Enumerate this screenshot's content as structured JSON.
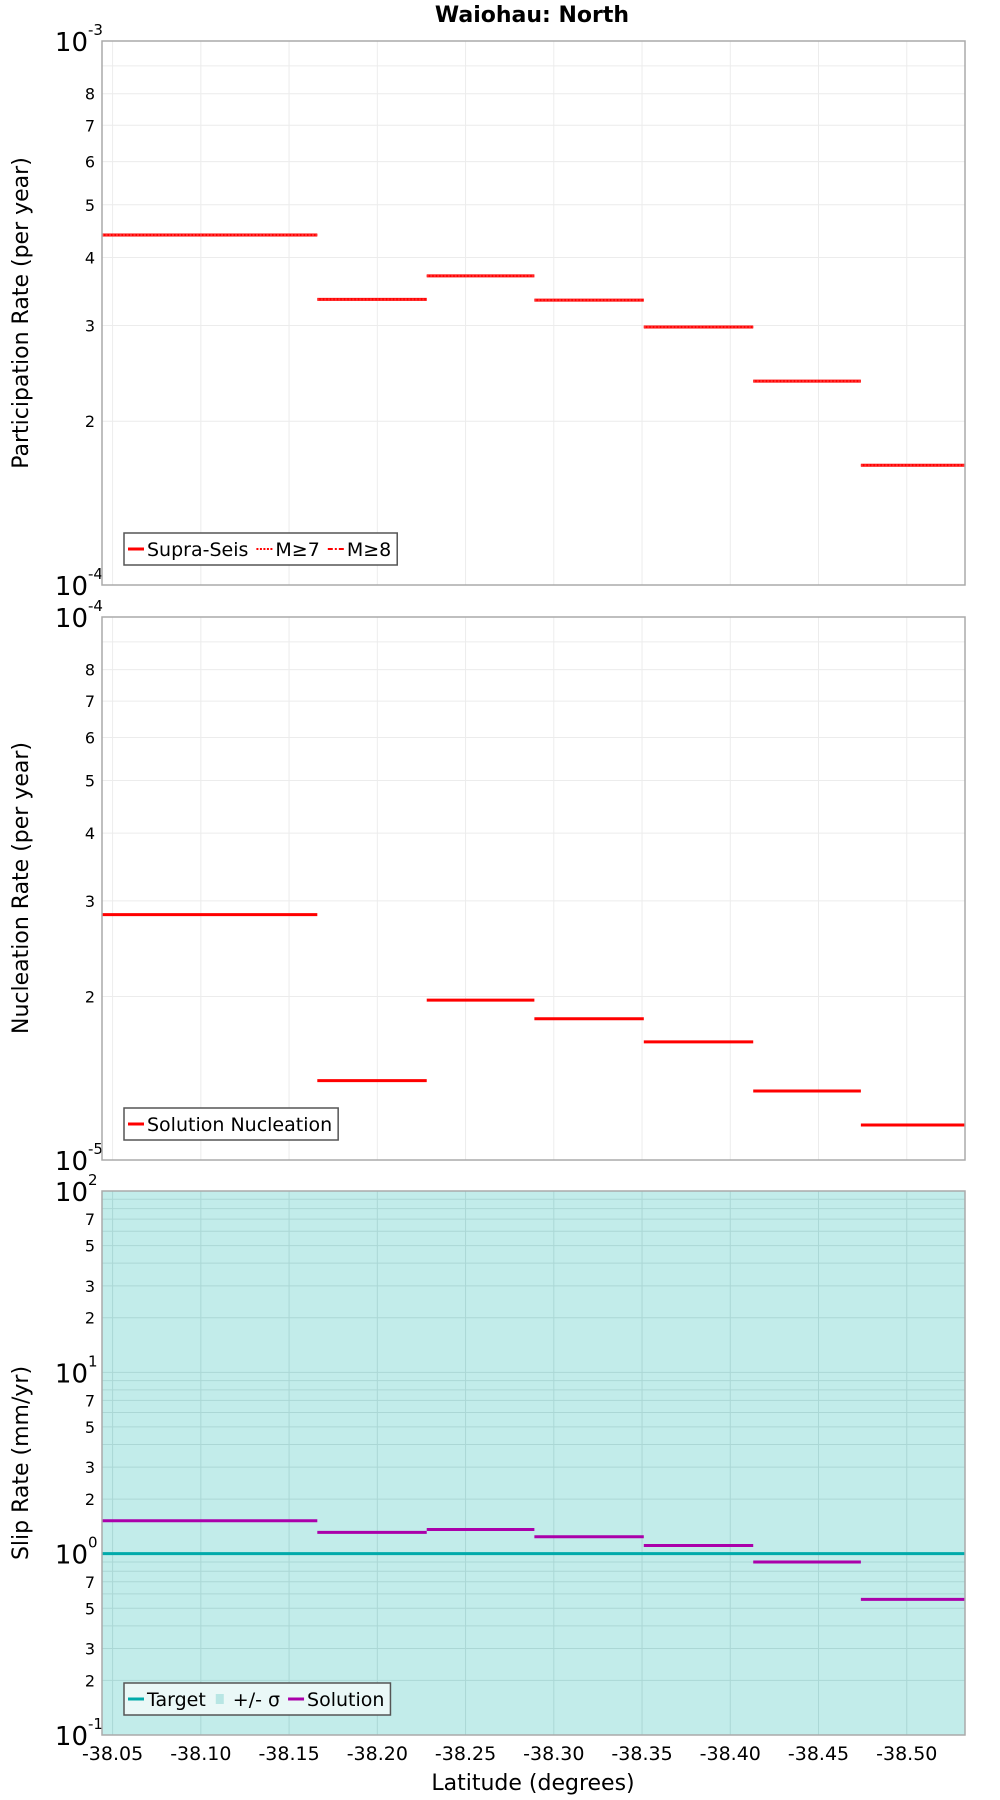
{
  "chart_data": [
    {
      "type": "line",
      "panel": "participation",
      "title": "Waiohau: North",
      "ylabel": "Participation Rate (per year)",
      "xlabel": "Latitude (degrees)",
      "yscale": "log",
      "ylim": [
        0.0001,
        0.001
      ],
      "xlim": [
        -38.044,
        -38.533
      ],
      "y_major_ticks": [
        {
          "base": "10",
          "exp": "-3",
          "value": 0.001
        },
        {
          "base": "10",
          "exp": "-4",
          "value": 0.0001
        }
      ],
      "y_minor_ticks": [
        2,
        3,
        4,
        5,
        6,
        7,
        8
      ],
      "segment_bounds": [
        -38.044,
        -38.166,
        -38.228,
        -38.289,
        -38.351,
        -38.413,
        -38.474,
        -38.533
      ],
      "series": [
        {
          "name": "Supra-Seis",
          "style": "solid",
          "color": "#ff0000",
          "values": [
            0.00044,
            0.000335,
            0.00037,
            0.000334,
            0.000298,
            0.000237,
            0.000166
          ]
        },
        {
          "name": "M≥7",
          "style": "dotted",
          "color": "#ff0000",
          "values": [
            0.00044,
            0.000335,
            0.00037,
            0.000334,
            0.000298,
            0.000237,
            0.000166
          ]
        },
        {
          "name": "M≥8",
          "style": "dashdot",
          "color": "#ff0000",
          "values": []
        }
      ],
      "legend": [
        "Supra-Seis",
        "M≥7",
        "M≥8"
      ],
      "legend_position": "lower-left",
      "grid": true
    },
    {
      "type": "line",
      "panel": "nucleation",
      "ylabel": "Nucleation Rate (per year)",
      "yscale": "log",
      "ylim": [
        1e-05,
        0.0001
      ],
      "y_major_ticks": [
        {
          "base": "10",
          "exp": "-4",
          "value": 0.0001
        },
        {
          "base": "10",
          "exp": "-5",
          "value": 1e-05
        }
      ],
      "y_minor_ticks": [
        2,
        3,
        4,
        5,
        6,
        7,
        8
      ],
      "segment_bounds": [
        -38.044,
        -38.166,
        -38.228,
        -38.289,
        -38.351,
        -38.413,
        -38.474,
        -38.533
      ],
      "series": [
        {
          "name": "Solution Nucleation",
          "style": "solid",
          "color": "#ff0000",
          "values": [
            2.83e-05,
            1.4e-05,
            1.97e-05,
            1.82e-05,
            1.65e-05,
            1.34e-05,
            1.16e-05
          ]
        }
      ],
      "legend": [
        "Solution Nucleation"
      ],
      "legend_position": "lower-left",
      "grid": true
    },
    {
      "type": "line",
      "panel": "slip",
      "ylabel": "Slip Rate (mm/yr)",
      "xlabel": "Latitude (degrees)",
      "yscale": "log",
      "ylim": [
        0.1,
        100
      ],
      "y_major_ticks": [
        {
          "base": "10",
          "exp": "2",
          "value": 100
        },
        {
          "base": "10",
          "exp": "1",
          "value": 10
        },
        {
          "base": "10",
          "exp": "0",
          "value": 1
        },
        {
          "base": "10",
          "exp": "-1",
          "value": 0.1
        }
      ],
      "y_minor_ticks": [
        2,
        3,
        5,
        7
      ],
      "x_ticks": [
        "-38.05",
        "-38.10",
        "-38.15",
        "-38.20",
        "-38.25",
        "-38.30",
        "-38.35",
        "-38.40",
        "-38.45",
        "-38.50"
      ],
      "segment_bounds": [
        -38.044,
        -38.166,
        -38.228,
        -38.289,
        -38.351,
        -38.413,
        -38.474,
        -38.533
      ],
      "series": [
        {
          "name": "Target",
          "style": "solid",
          "color": "#00aaaa",
          "values": [
            1,
            1,
            1,
            1,
            1,
            1,
            1
          ]
        },
        {
          "name": "+/- σ",
          "style": "fill",
          "color": "#c2ecea",
          "range": [
            0.1,
            100
          ]
        },
        {
          "name": "Solution",
          "style": "solid",
          "color": "#aa00aa",
          "values": [
            1.52,
            1.31,
            1.36,
            1.24,
            1.11,
            0.9,
            0.56
          ]
        }
      ],
      "legend": [
        "Target",
        "+/- σ",
        "Solution"
      ],
      "legend_position": "lower-left",
      "grid": true
    }
  ],
  "labels": {
    "title": "Waiohau: North",
    "xlabel": "Latitude (degrees)",
    "p1_ylabel": "Participation Rate (per year)",
    "p2_ylabel": "Nucleation Rate (per year)",
    "p3_ylabel": "Slip Rate (mm/yr)",
    "legend1": [
      "Supra-Seis",
      "M≥7",
      "M≥8"
    ],
    "legend2": [
      "Solution Nucleation"
    ],
    "legend3": [
      "Target",
      "+/- σ",
      "Solution"
    ]
  },
  "colors": {
    "red": "#ff0000",
    "target": "#00aaaa",
    "solution": "#aa00aa",
    "sigma_fill": "#c2ecea",
    "grid": "#e8e8e8",
    "frame": "#aaaaaa"
  }
}
